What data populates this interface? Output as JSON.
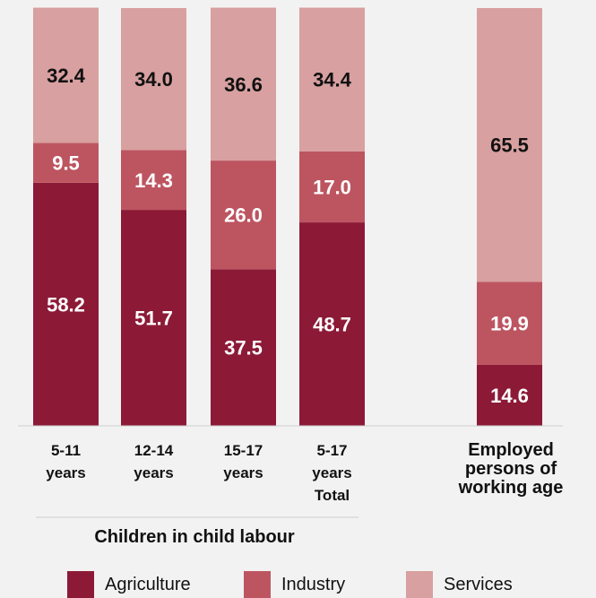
{
  "chart_data": {
    "type": "bar",
    "stacked": true,
    "percent": true,
    "categories": [
      "5-11 years",
      "12-14 years",
      "15-17 years",
      "5-17 years Total",
      "Employed persons of working age"
    ],
    "category_lines": [
      [
        "5-11",
        "years"
      ],
      [
        "12-14",
        "years"
      ],
      [
        "15-17",
        "years"
      ],
      [
        "5-17",
        "years",
        "Total"
      ],
      [
        "Employed",
        "persons of",
        "working age"
      ]
    ],
    "group_label": "Children in child labour",
    "series": [
      {
        "name": "Agriculture",
        "values": [
          58.2,
          51.7,
          37.5,
          48.7,
          14.6
        ],
        "color": "#8c1a37"
      },
      {
        "name": "Industry",
        "values": [
          9.5,
          14.3,
          26.0,
          17.0,
          19.9
        ],
        "color": "#bd5561"
      },
      {
        "name": "Services",
        "values": [
          32.4,
          34.0,
          36.6,
          34.4,
          65.5
        ],
        "color": "#d8a0a0"
      }
    ],
    "ylim": [
      0,
      100
    ],
    "grid": false,
    "legend_position": "bottom",
    "label_colors": {
      "Agriculture": "#ffffff",
      "Industry": "#ffffff",
      "Services": "#111111"
    }
  }
}
